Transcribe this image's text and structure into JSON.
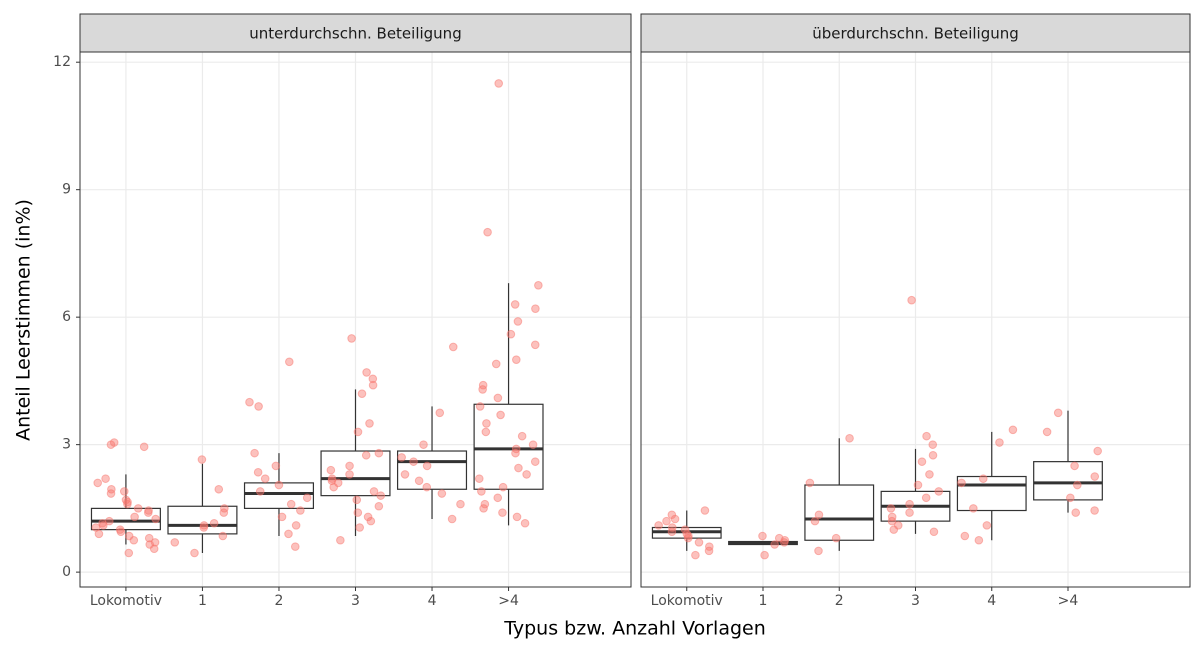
{
  "chart_data": {
    "type": "box",
    "xlabel": "Typus bzw. Anzahl Vorlagen",
    "ylabel": "Anteil Leerstimmen (in%)",
    "ylim": [
      -0.35,
      12.24
    ],
    "yticks": [
      0,
      3,
      6,
      9,
      12
    ],
    "grid": true,
    "point_color": "#f8766d",
    "facets": [
      {
        "title": "unterdurchschn. Beteiligung",
        "categories": [
          "Lokomotiv",
          "1",
          "2",
          "3",
          "4",
          ">4"
        ],
        "boxes": [
          {
            "min": 0.65,
            "q1": 1.0,
            "median": 1.2,
            "q3": 1.5,
            "max": 2.3
          },
          {
            "min": 0.45,
            "q1": 0.9,
            "median": 1.1,
            "q3": 1.55,
            "max": 2.55
          },
          {
            "min": 0.85,
            "q1": 1.5,
            "median": 1.85,
            "q3": 2.1,
            "max": 2.8
          },
          {
            "min": 0.85,
            "q1": 1.8,
            "median": 2.2,
            "q3": 2.85,
            "max": 4.3
          },
          {
            "min": 1.25,
            "q1": 1.95,
            "median": 2.6,
            "q3": 2.85,
            "max": 3.9
          },
          {
            "min": 1.1,
            "q1": 1.95,
            "median": 2.9,
            "q3": 3.95,
            "max": 6.8
          }
        ],
        "points": [
          [
            2.95,
            3.0,
            3.05,
            2.2,
            2.1,
            1.95,
            1.9,
            1.85,
            1.7,
            1.65,
            1.6,
            1.5,
            1.45,
            1.4,
            1.3,
            1.25,
            1.2,
            1.15,
            1.1,
            1.05,
            1.0,
            0.95,
            0.9,
            0.85,
            0.8,
            0.75,
            0.7,
            0.65,
            0.55,
            0.45
          ],
          [
            2.65,
            1.95,
            1.5,
            1.4,
            1.15,
            1.1,
            1.05,
            0.85,
            0.7,
            0.45
          ],
          [
            4.95,
            4.0,
            3.9,
            2.8,
            2.5,
            2.35,
            2.2,
            2.05,
            1.9,
            1.75,
            1.6,
            1.45,
            1.3,
            1.1,
            0.9,
            0.6
          ],
          [
            5.5,
            4.7,
            4.55,
            4.4,
            4.2,
            3.5,
            3.3,
            2.8,
            2.75,
            2.5,
            2.4,
            2.3,
            2.2,
            2.15,
            2.1,
            2.0,
            1.9,
            1.8,
            1.7,
            1.55,
            1.4,
            1.3,
            1.2,
            1.05,
            0.75
          ],
          [
            5.3,
            3.75,
            3.0,
            2.7,
            2.6,
            2.5,
            2.3,
            2.15,
            2.0,
            1.85,
            1.6,
            1.25
          ],
          [
            11.5,
            8.0,
            6.75,
            6.3,
            6.2,
            5.9,
            5.6,
            5.35,
            5.0,
            4.9,
            4.4,
            4.3,
            4.1,
            3.9,
            3.7,
            3.5,
            3.3,
            3.2,
            3.0,
            2.9,
            2.8,
            2.6,
            2.45,
            2.3,
            2.2,
            2.0,
            1.9,
            1.75,
            1.6,
            1.5,
            1.4,
            1.3,
            1.15
          ]
        ]
      },
      {
        "title": "überdurchschn. Beteiligung",
        "categories": [
          "Lokomotiv",
          "1",
          "2",
          "3",
          "4",
          ">4"
        ],
        "boxes": [
          {
            "min": 0.5,
            "q1": 0.8,
            "median": 0.95,
            "q3": 1.05,
            "max": 1.45
          },
          {
            "min": 0.65,
            "q1": 0.65,
            "median": 0.68,
            "q3": 0.72,
            "max": 0.72
          },
          {
            "min": 0.5,
            "q1": 0.75,
            "median": 1.25,
            "q3": 2.05,
            "max": 3.15
          },
          {
            "min": 0.9,
            "q1": 1.2,
            "median": 1.55,
            "q3": 1.9,
            "max": 2.9
          },
          {
            "min": 0.75,
            "q1": 1.45,
            "median": 2.05,
            "q3": 2.25,
            "max": 3.3
          },
          {
            "min": 1.4,
            "q1": 1.7,
            "median": 2.1,
            "q3": 2.6,
            "max": 3.8
          }
        ],
        "points": [
          [
            1.45,
            1.35,
            1.25,
            1.2,
            1.1,
            1.05,
            1.0,
            0.95,
            0.9,
            0.85,
            0.8,
            0.7,
            0.6,
            0.5,
            0.4
          ],
          [
            0.85,
            0.8,
            0.75,
            0.7,
            0.65,
            0.4
          ],
          [
            3.15,
            2.1,
            1.35,
            1.2,
            0.8,
            0.5
          ],
          [
            6.4,
            3.2,
            3.0,
            2.75,
            2.6,
            2.3,
            2.05,
            1.9,
            1.75,
            1.6,
            1.5,
            1.4,
            1.3,
            1.2,
            1.1,
            1.0,
            0.95
          ],
          [
            3.35,
            3.05,
            2.2,
            2.1,
            1.5,
            1.1,
            0.85,
            0.75
          ],
          [
            3.75,
            3.3,
            2.85,
            2.5,
            2.25,
            2.05,
            1.75,
            1.45,
            1.4
          ]
        ]
      }
    ]
  }
}
